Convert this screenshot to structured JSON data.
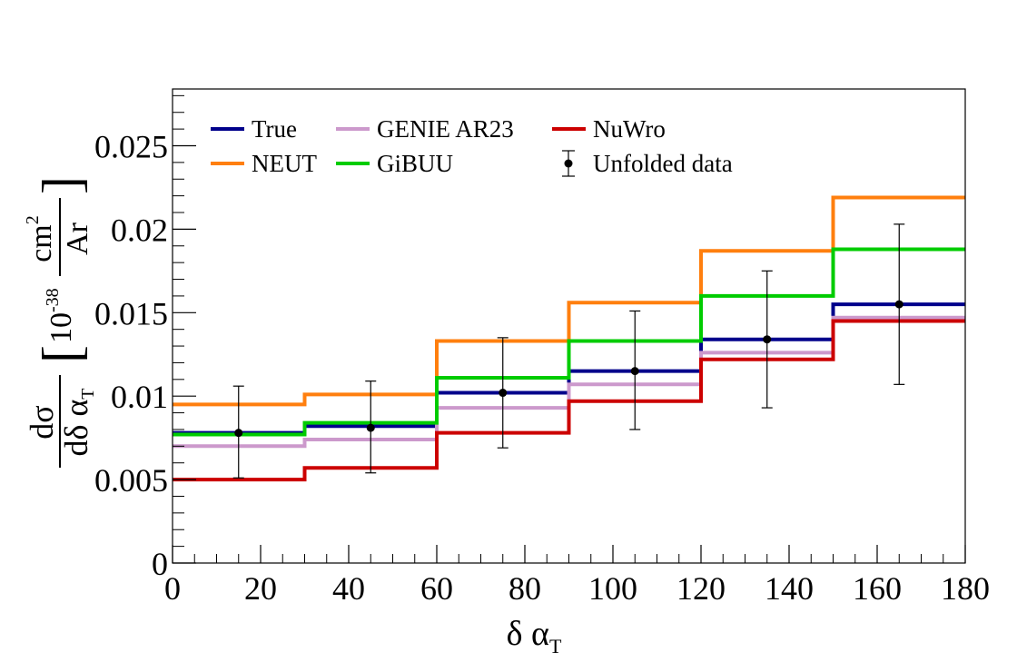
{
  "chart_data": {
    "type": "step-histogram",
    "xlabel_main": "δ α",
    "xlabel_sub": "T",
    "ylabel": {
      "numerator": "dσ",
      "denominator_main": "dδ α",
      "denominator_sub": "T",
      "unit_scale": "10",
      "unit_exponent": "-38",
      "unit_numerator": "cm",
      "unit_numerator_sup": "2",
      "unit_denominator": "Ar"
    },
    "xlim": [
      0,
      180
    ],
    "ylim": [
      0,
      0.0284
    ],
    "bin_edges": [
      0,
      30,
      60,
      90,
      120,
      150,
      180
    ],
    "x_ticks": [
      0,
      20,
      40,
      60,
      80,
      100,
      120,
      140,
      160,
      180
    ],
    "x_tick_labels": [
      "0",
      "20",
      "40",
      "60",
      "80",
      "100",
      "120",
      "140",
      "160",
      "180"
    ],
    "y_ticks": [
      0,
      0.005,
      0.01,
      0.015,
      0.02,
      0.025
    ],
    "y_tick_labels": [
      "0",
      "0.005",
      "0.01",
      "0.015",
      "0.02",
      "0.025"
    ],
    "grid": false,
    "legend_position": "top-left",
    "series": [
      {
        "name": "True",
        "color": "#00008b",
        "values": [
          0.0078,
          0.0082,
          0.0102,
          0.0115,
          0.0134,
          0.0155
        ]
      },
      {
        "name": "GENIE AR23",
        "color": "#cc99cc",
        "values": [
          0.007,
          0.0074,
          0.0093,
          0.0107,
          0.0126,
          0.0147
        ]
      },
      {
        "name": "NuWro",
        "color": "#cc0000",
        "values": [
          0.005,
          0.0057,
          0.0078,
          0.0097,
          0.0122,
          0.0145
        ]
      },
      {
        "name": "NEUT",
        "color": "#ff7f0e",
        "values": [
          0.0095,
          0.0101,
          0.0133,
          0.0156,
          0.0187,
          0.0219
        ]
      },
      {
        "name": "GiBUU",
        "color": "#00cc00",
        "values": [
          0.0077,
          0.0084,
          0.0111,
          0.0133,
          0.016,
          0.0188
        ]
      }
    ],
    "data_points": {
      "name": "Unfolded data",
      "color": "#000000",
      "x": [
        15,
        45,
        75,
        105,
        135,
        165
      ],
      "y": [
        0.0078,
        0.0081,
        0.0102,
        0.0115,
        0.0134,
        0.0155
      ],
      "err_low": [
        0.0027,
        0.0027,
        0.0033,
        0.0035,
        0.0041,
        0.0048
      ],
      "err_high": [
        0.0028,
        0.0028,
        0.0033,
        0.0036,
        0.0041,
        0.0048
      ]
    },
    "legend_order": [
      "True",
      "GENIE AR23",
      "NuWro",
      "NEUT",
      "GiBUU",
      "Unfolded data"
    ]
  }
}
